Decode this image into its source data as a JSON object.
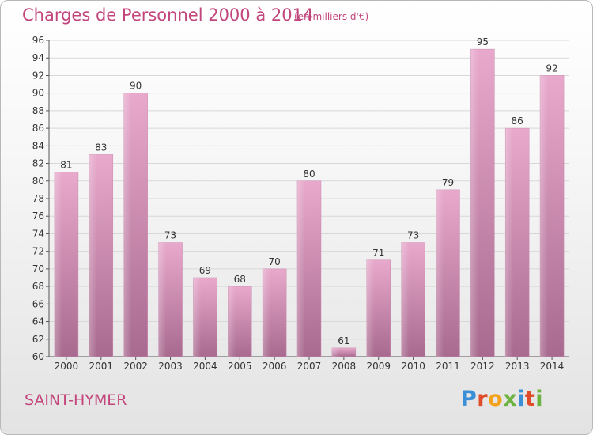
{
  "title": "Charges de Personnel 2000 à 2014",
  "subtitle": "(en milliers d'€)",
  "commune": "SAINT-HYMER",
  "logo": {
    "text": "Proxiti",
    "colors": [
      "#3b8fd6",
      "#e04b2a",
      "#f2a21b",
      "#6cb33f",
      "#3b8fd6",
      "#e04b2a",
      "#6cb33f"
    ]
  },
  "colors": {
    "title": "#c2457c",
    "bar_top": "#e8a9cc",
    "bar_bottom": "#a86a8f",
    "grid": "#d8d8d8",
    "axis_text": "#333333"
  },
  "chart_data": {
    "type": "bar",
    "title": "Charges de Personnel 2000 à 2014",
    "categories": [
      "2000",
      "2001",
      "2002",
      "2003",
      "2004",
      "2005",
      "2006",
      "2007",
      "2008",
      "2009",
      "2010",
      "2011",
      "2012",
      "2013",
      "2014"
    ],
    "values": [
      81,
      83,
      90,
      73,
      69,
      68,
      70,
      80,
      61,
      71,
      73,
      79,
      95,
      86,
      92
    ],
    "ylim": [
      60,
      96
    ],
    "yticks": [
      60,
      62,
      64,
      66,
      68,
      70,
      72,
      74,
      76,
      78,
      80,
      82,
      84,
      86,
      88,
      90,
      92,
      94,
      96
    ],
    "grid": true
  }
}
